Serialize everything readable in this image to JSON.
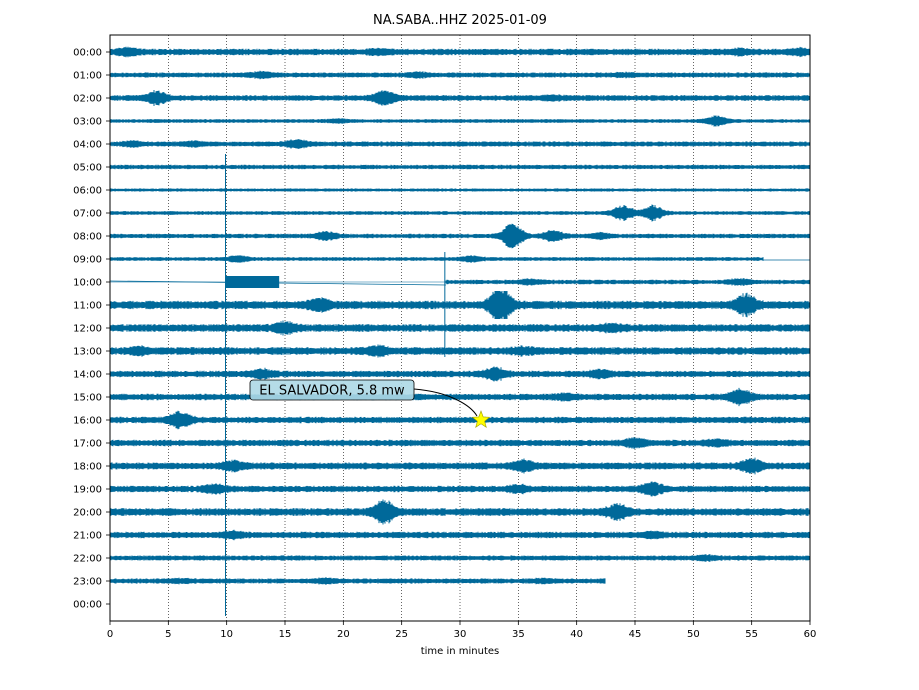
{
  "chart_data": {
    "type": "line",
    "title": "NA.SABA..HHZ 2025-01-09",
    "xlabel": "time in minutes",
    "ylabel": "",
    "xlim": [
      0,
      60
    ],
    "x_ticks": [
      0,
      5,
      10,
      15,
      20,
      25,
      30,
      35,
      40,
      45,
      50,
      55,
      60
    ],
    "x_tick_labels": [
      "0",
      "5",
      "10",
      "15",
      "20",
      "25",
      "30",
      "35",
      "40",
      "45",
      "50",
      "55",
      "60"
    ],
    "row_labels": [
      "00:00",
      "01:00",
      "02:00",
      "03:00",
      "04:00",
      "05:00",
      "06:00",
      "07:00",
      "08:00",
      "09:00",
      "10:00",
      "11:00",
      "12:00",
      "13:00",
      "14:00",
      "15:00",
      "16:00",
      "17:00",
      "18:00",
      "19:00",
      "20:00",
      "21:00",
      "22:00",
      "23:00",
      "00:00"
    ],
    "grid": "vertical dotted at x ticks",
    "trace_color": "#00699a",
    "rows": [
      {
        "hour": "00:00",
        "amplitude": 1.0,
        "end": 60,
        "bursts": [
          [
            1.5,
            1.8
          ],
          [
            23,
            1.4
          ],
          [
            54,
            1.5
          ],
          [
            59,
            1.6
          ]
        ]
      },
      {
        "hour": "01:00",
        "amplitude": 0.8,
        "end": 60,
        "bursts": [
          [
            13,
            1.8
          ],
          [
            26.5,
            1.5
          ],
          [
            44,
            1.4
          ]
        ]
      },
      {
        "hour": "02:00",
        "amplitude": 0.9,
        "end": 60,
        "bursts": [
          [
            4,
            2.8
          ],
          [
            23.5,
            3.0
          ],
          [
            38,
            1.4
          ]
        ]
      },
      {
        "hour": "03:00",
        "amplitude": 0.6,
        "end": 60,
        "bursts": [
          [
            19.5,
            1.6
          ],
          [
            52,
            3.0
          ]
        ]
      },
      {
        "hour": "04:00",
        "amplitude": 0.8,
        "end": 60,
        "bursts": [
          [
            2,
            1.6
          ],
          [
            7,
            1.6
          ],
          [
            16,
            2.2
          ]
        ]
      },
      {
        "hour": "05:00",
        "amplitude": 0.7,
        "end": 60,
        "bursts": []
      },
      {
        "hour": "06:00",
        "amplitude": 0.5,
        "end": 60,
        "bursts": []
      },
      {
        "hour": "07:00",
        "amplitude": 0.6,
        "end": 60,
        "bursts": [
          [
            44,
            4.5
          ],
          [
            46.5,
            4.5
          ]
        ]
      },
      {
        "hour": "08:00",
        "amplitude": 0.7,
        "end": 60,
        "bursts": [
          [
            18.5,
            2.5
          ],
          [
            34.5,
            6.0
          ],
          [
            38,
            3.0
          ],
          [
            42,
            2.0
          ]
        ]
      },
      {
        "hour": "09:00",
        "amplitude": 0.6,
        "end": 56,
        "bursts": [
          [
            11,
            2.2
          ],
          [
            31,
            2.2
          ]
        ]
      },
      {
        "hour": "10:00",
        "amplitude": 0.7,
        "end": 60,
        "quiet_until": 28.8,
        "bursts": [
          [
            36,
            2.0
          ],
          [
            54,
            2.0
          ]
        ]
      },
      {
        "hour": "11:00",
        "amplitude": 1.3,
        "end": 60,
        "bursts": [
          [
            18,
            2.0
          ],
          [
            33.5,
            5.0
          ],
          [
            54.5,
            3.0
          ]
        ]
      },
      {
        "hour": "12:00",
        "amplitude": 1.2,
        "end": 60,
        "bursts": [
          [
            15,
            2.0
          ],
          [
            43,
            1.6
          ]
        ]
      },
      {
        "hour": "13:00",
        "amplitude": 1.2,
        "end": 60,
        "bursts": [
          [
            2.5,
            1.6
          ],
          [
            23,
            1.8
          ],
          [
            35.5,
            1.5
          ]
        ]
      },
      {
        "hour": "14:00",
        "amplitude": 1.0,
        "end": 60,
        "bursts": [
          [
            13,
            2.0
          ],
          [
            33,
            2.5
          ],
          [
            42,
            1.8
          ]
        ]
      },
      {
        "hour": "15:00",
        "amplitude": 1.0,
        "end": 60,
        "bursts": [
          [
            39,
            1.6
          ],
          [
            54,
            3.0
          ]
        ]
      },
      {
        "hour": "16:00",
        "amplitude": 1.0,
        "end": 60,
        "bursts": [
          [
            6,
            3.0
          ]
        ]
      },
      {
        "hour": "17:00",
        "amplitude": 1.0,
        "end": 60,
        "bursts": [
          [
            45,
            2.0
          ],
          [
            52,
            1.6
          ]
        ]
      },
      {
        "hour": "18:00",
        "amplitude": 1.1,
        "end": 60,
        "bursts": [
          [
            10.5,
            2.0
          ],
          [
            35.5,
            2.2
          ],
          [
            55,
            2.5
          ]
        ]
      },
      {
        "hour": "19:00",
        "amplitude": 1.0,
        "end": 60,
        "bursts": [
          [
            9,
            2.0
          ],
          [
            35,
            1.8
          ],
          [
            46.5,
            2.5
          ]
        ]
      },
      {
        "hour": "20:00",
        "amplitude": 1.2,
        "end": 60,
        "bursts": [
          [
            23.5,
            3.5
          ],
          [
            43.5,
            2.5
          ]
        ]
      },
      {
        "hour": "21:00",
        "amplitude": 1.0,
        "end": 60,
        "bursts": [
          [
            10.5,
            1.6
          ],
          [
            46.5,
            1.6
          ]
        ]
      },
      {
        "hour": "22:00",
        "amplitude": 0.8,
        "end": 60,
        "bursts": [
          [
            51,
            1.6
          ]
        ]
      },
      {
        "hour": "23:00",
        "amplitude": 0.8,
        "end": 42.5,
        "bursts": [
          [
            6,
            1.4
          ],
          [
            18.5,
            1.6
          ],
          [
            37,
            1.4
          ]
        ]
      }
    ],
    "annotation": {
      "text": "EL SALVADOR, 5.8 mw",
      "row": "16:00",
      "x": 31.8,
      "marker": "star",
      "marker_color": "#ffff00",
      "box_color": "#add8e6"
    }
  }
}
